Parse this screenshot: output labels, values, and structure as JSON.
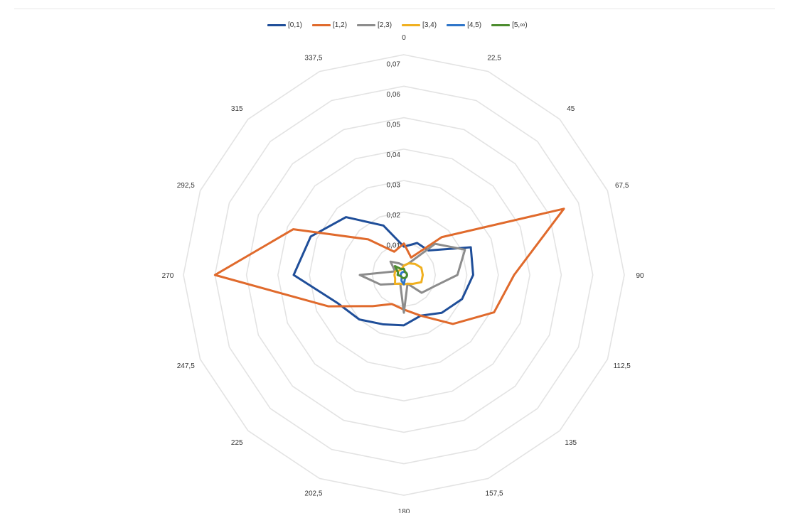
{
  "chart_data": {
    "type": "radar",
    "categories": [
      "0",
      "22,5",
      "45",
      "67,5",
      "90",
      "112,5",
      "135",
      "157,5",
      "180",
      "202,5",
      "225",
      "247,5",
      "270",
      "292,5",
      "315",
      "337,5"
    ],
    "radial_ticks": [
      "0",
      "0,01",
      "0,02",
      "0,03",
      "0,04",
      "0,05",
      "0,06",
      "0,07"
    ],
    "rlim": [
      0,
      0.07
    ],
    "legend_position": "top",
    "series": [
      {
        "name": "[0,1)",
        "color": "#1f4e99",
        "values": [
          0.009,
          0.011,
          0.011,
          0.023,
          0.022,
          0.02,
          0.017,
          0.014,
          0.016,
          0.017,
          0.02,
          0.023,
          0.035,
          0.032,
          0.026,
          0.017
        ]
      },
      {
        "name": "[1,2)",
        "color": "#e06a2c",
        "values": [
          0.01,
          0.006,
          0.017,
          0.055,
          0.035,
          0.031,
          0.022,
          0.014,
          0.011,
          0.01,
          0.014,
          0.026,
          0.06,
          0.038,
          0.016,
          0.008
        ]
      },
      {
        "name": "[2,3)",
        "color": "#8c8c8c",
        "values": [
          0.003,
          0.004,
          0.014,
          0.021,
          0.017,
          0.01,
          0.008,
          0.003,
          0.012,
          0.003,
          0.004,
          0.008,
          0.014,
          0.003,
          0.006,
          0.004
        ]
      },
      {
        "name": "[3,4)",
        "color": "#f0b020",
        "values": [
          0.003,
          0.004,
          0.005,
          0.006,
          0.006,
          0.006,
          0.004,
          0.003,
          0.003,
          0.003,
          0.004,
          0.003,
          0.003,
          0.003,
          0.002,
          0.002
        ]
      },
      {
        "name": "[4,5)",
        "color": "#2e75c9",
        "values": [
          0.001,
          0.001,
          0.001,
          0.001,
          0.001,
          0.001,
          0.001,
          0.001,
          0.003,
          0.002,
          0.001,
          0.001,
          0.001,
          0.001,
          0.001,
          0.001
        ]
      },
      {
        "name": "[5,∞)",
        "color": "#4c8c2e",
        "values": [
          0.002,
          0.001,
          0.001,
          0.001,
          0.001,
          0.001,
          0.001,
          0.001,
          0.001,
          0.001,
          0.001,
          0.001,
          0.002,
          0.002,
          0.004,
          0.002
        ]
      }
    ]
  }
}
